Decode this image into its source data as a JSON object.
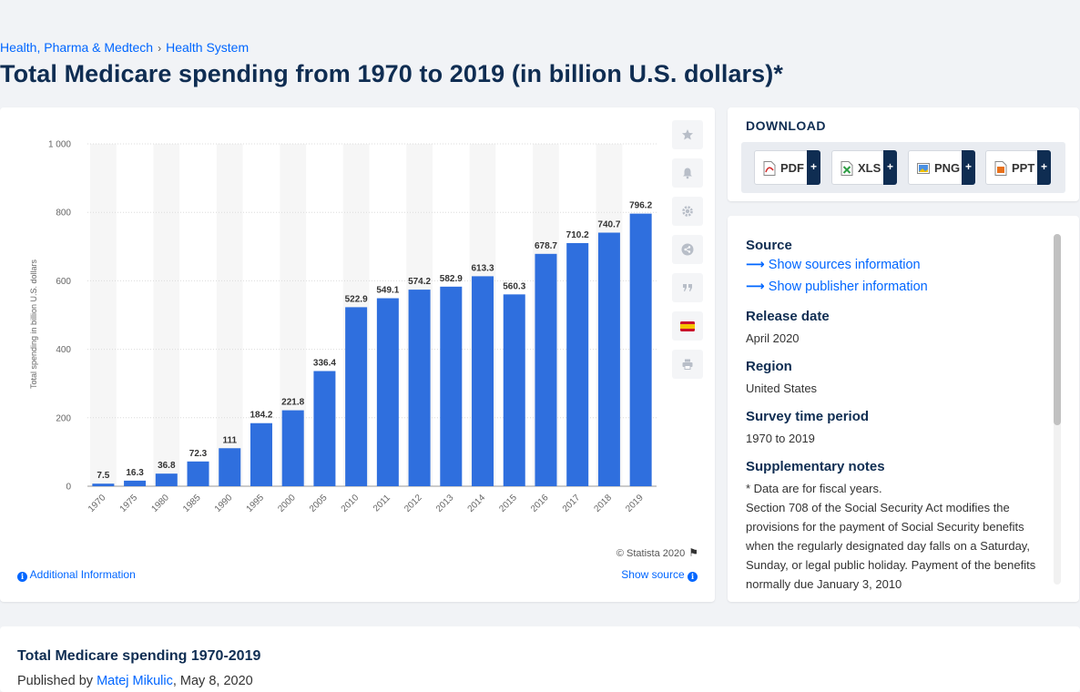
{
  "breadcrumb": {
    "items": [
      "Health, Pharma & Medtech",
      "Health System"
    ],
    "separator": "›"
  },
  "page_title": "Total Medicare spending from 1970 to 2019 (in billion U.S. dollars)*",
  "chart_data": {
    "type": "bar",
    "title": "",
    "xlabel": "",
    "ylabel": "Total spending in billion U.S. dollars",
    "categories": [
      "1970",
      "1975",
      "1980",
      "1985",
      "1990",
      "1995",
      "2000",
      "2005",
      "2010",
      "2011",
      "2012",
      "2013",
      "2014",
      "2015",
      "2016",
      "2017",
      "2018",
      "2019"
    ],
    "values": [
      7.5,
      16.3,
      36.8,
      72.3,
      111,
      184.2,
      221.8,
      336.4,
      522.9,
      549.1,
      574.2,
      582.9,
      613.3,
      560.3,
      678.7,
      710.2,
      740.7,
      796.2
    ],
    "value_labels": [
      "7.5",
      "16.3",
      "36.8",
      "72.3",
      "111",
      "184.2",
      "221.8",
      "336.4",
      "522.9",
      "549.1",
      "574.2",
      "582.9",
      "613.3",
      "560.3",
      "678.7",
      "710.2",
      "740.7",
      "796.2"
    ],
    "ylim": [
      0,
      1000
    ],
    "yticks": [
      0,
      200,
      400,
      600,
      800,
      1000
    ],
    "ytick_labels": [
      "0",
      "200",
      "400",
      "600",
      "800",
      "1 000"
    ],
    "grid": true,
    "bar_color": "#2f6fde"
  },
  "chart_card": {
    "copyright": "© Statista 2020",
    "additional_info": "Additional Information",
    "show_source": "Show source",
    "tools": [
      "star-icon",
      "bell-icon",
      "gear-icon",
      "share-icon",
      "quote-icon",
      "spain-flag-icon",
      "print-icon"
    ]
  },
  "download": {
    "title": "DOWNLOAD",
    "buttons": [
      {
        "label": "PDF",
        "icon": "pdf-file-icon",
        "plus": "+"
      },
      {
        "label": "XLS",
        "icon": "xls-file-icon",
        "plus": "+"
      },
      {
        "label": "PNG",
        "icon": "png-file-icon",
        "plus": "+"
      },
      {
        "label": "PPT",
        "icon": "ppt-file-icon",
        "plus": "+"
      }
    ]
  },
  "info": {
    "source_heading": "Source",
    "show_sources": "Show sources information",
    "show_publisher": "Show publisher information",
    "release_heading": "Release date",
    "release_value": "April 2020",
    "region_heading": "Region",
    "region_value": "United States",
    "survey_heading": "Survey time period",
    "survey_value": "1970 to 2019",
    "supp_heading": "Supplementary notes",
    "supp_line1": "* Data are for fiscal years.",
    "supp_line2": "Section 708 of the Social Security Act modifies the provisions for the payment of Social Security benefits when the regularly designated day falls on a Saturday, Sunday, or legal public holiday. Payment of the  benefits normally due January 3, 2010"
  },
  "bottom": {
    "title": "Total Medicare spending 1970-2019",
    "published_by": "Published by",
    "author": "Matej Mikulic",
    "date": ", May 8, 2020"
  }
}
